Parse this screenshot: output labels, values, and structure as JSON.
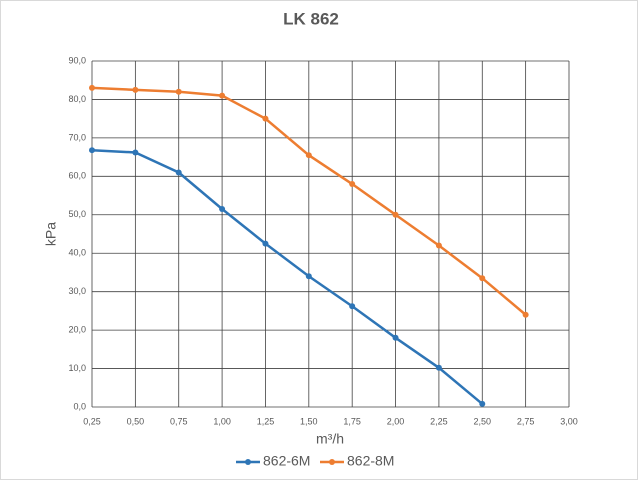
{
  "chart_data": {
    "type": "line",
    "title": "LK 862",
    "x_label": "m³/h",
    "y_label": "kPa",
    "x": [
      0.25,
      0.5,
      0.75,
      1.0,
      1.25,
      1.5,
      1.75,
      2.0,
      2.25,
      2.5,
      2.75
    ],
    "series": [
      {
        "name": "862-6M",
        "color": "#2e75b6",
        "values": [
          66.8,
          66.2,
          61.0,
          51.5,
          42.5,
          34.0,
          26.2,
          18.0,
          10.2,
          0.8,
          null
        ]
      },
      {
        "name": "862-8M",
        "color": "#ed7d31",
        "values": [
          83.0,
          82.5,
          82.0,
          81.0,
          75.0,
          65.5,
          58.0,
          50.0,
          42.0,
          33.5,
          24.0
        ]
      }
    ],
    "xlim": [
      0.25,
      3.0
    ],
    "xticks": [
      {
        "value": 0.25,
        "label": "0,25"
      },
      {
        "value": 0.5,
        "label": "0,50"
      },
      {
        "value": 0.75,
        "label": "0,75"
      },
      {
        "value": 1.0,
        "label": "1,00"
      },
      {
        "value": 1.25,
        "label": "1,25"
      },
      {
        "value": 1.5,
        "label": "1,50"
      },
      {
        "value": 1.75,
        "label": "1,75"
      },
      {
        "value": 2.0,
        "label": "2,00"
      },
      {
        "value": 2.25,
        "label": "2,25"
      },
      {
        "value": 2.5,
        "label": "2,50"
      },
      {
        "value": 2.75,
        "label": "2,75"
      },
      {
        "value": 3.0,
        "label": "3,00"
      }
    ],
    "ylim": [
      0,
      90
    ],
    "yticks": [
      {
        "value": 0,
        "label": "0,0"
      },
      {
        "value": 10,
        "label": "10,0"
      },
      {
        "value": 20,
        "label": "20,0"
      },
      {
        "value": 30,
        "label": "30,0"
      },
      {
        "value": 40,
        "label": "40,0"
      },
      {
        "value": 50,
        "label": "50,0"
      },
      {
        "value": 60,
        "label": "60,0"
      },
      {
        "value": 70,
        "label": "70,0"
      },
      {
        "value": 80,
        "label": "80,0"
      },
      {
        "value": 90,
        "label": "90,0"
      }
    ],
    "grid": true,
    "legend": "bottom"
  }
}
